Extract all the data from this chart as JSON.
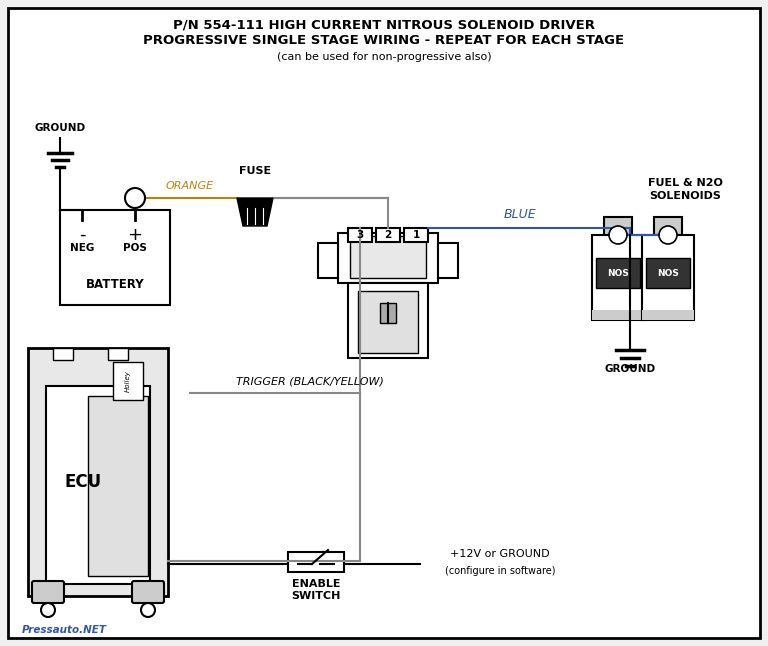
{
  "title_line1": "P/N 554-111 HIGH CURRENT NITROUS SOLENOID DRIVER",
  "title_line2": "PROGRESSIVE SINGLE STAGE WIRING - REPEAT FOR EACH STAGE",
  "title_line3": "(can be used for non-progressive also)",
  "bg_color": "#f0f0f0",
  "border_color": "#000000",
  "orange_color": "#b8860b",
  "blue_color": "#3355aa",
  "gray_wire": "#888888",
  "watermark": "Pressauto.NET"
}
